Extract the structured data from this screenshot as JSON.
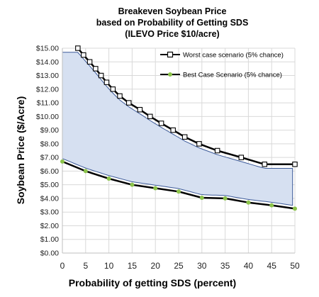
{
  "chart_data": {
    "type": "line",
    "title_lines": [
      "Breakeven Soybean Price",
      "based on Probability of Getting SDS",
      "(ILEVO Price $10/acre)"
    ],
    "xlabel": "Probability of getting SDS (percent)",
    "ylabel": "Soybean Price ($/Acre)",
    "xlim": [
      0,
      50
    ],
    "ylim": [
      0,
      15
    ],
    "x_ticks": [
      0,
      5,
      10,
      15,
      20,
      25,
      30,
      35,
      40,
      45,
      50
    ],
    "y_ticks": [
      0,
      1,
      2,
      3,
      4,
      5,
      6,
      7,
      8,
      9,
      10,
      11,
      12,
      13,
      14,
      15
    ],
    "y_tick_labels": [
      "$0.00",
      "$1.00",
      "$2.00",
      "$3.00",
      "$4.00",
      "$5.00",
      "$6.00",
      "$7.00",
      "$8.00",
      "$9.00",
      "$10.00",
      "$11.00",
      "$12.00",
      "$13.00",
      "$14.00",
      "$15.00"
    ],
    "x_tick_labels": [
      "0",
      "5",
      "10",
      "15",
      "20",
      "25",
      "30",
      "35",
      "40",
      "45",
      "50"
    ],
    "grid": true,
    "legend_position": "top-right",
    "band_color": "#d6e0f1",
    "band_edge_color": "#3c5a99",
    "series": [
      {
        "name": "Worst case scenario (5% chance)",
        "color": "#000000",
        "marker": "square-open",
        "x": [
          3.33,
          4.55,
          5.88,
          7.14,
          8.33,
          9.52,
          10.87,
          12.35,
          14.29,
          16.67,
          18.87,
          21.28,
          23.81,
          26.32,
          29.41,
          33.33,
          38.46,
          43.48,
          50.0
        ],
        "y": [
          15.0,
          14.5,
          14.0,
          13.5,
          13.0,
          12.5,
          12.0,
          11.5,
          11.0,
          10.5,
          10.0,
          9.5,
          9.0,
          8.5,
          8.0,
          7.5,
          7.0,
          6.5,
          6.5
        ]
      },
      {
        "name": "Best Case Scenario (5% chance)",
        "color": "#8bc34a",
        "marker": "circle-filled",
        "x": [
          0,
          5,
          10,
          15,
          20,
          25,
          30,
          35,
          40,
          45,
          50
        ],
        "y": [
          6.7,
          6.0,
          5.45,
          5.0,
          4.75,
          4.5,
          4.05,
          4.0,
          3.7,
          3.5,
          3.25
        ]
      }
    ]
  }
}
